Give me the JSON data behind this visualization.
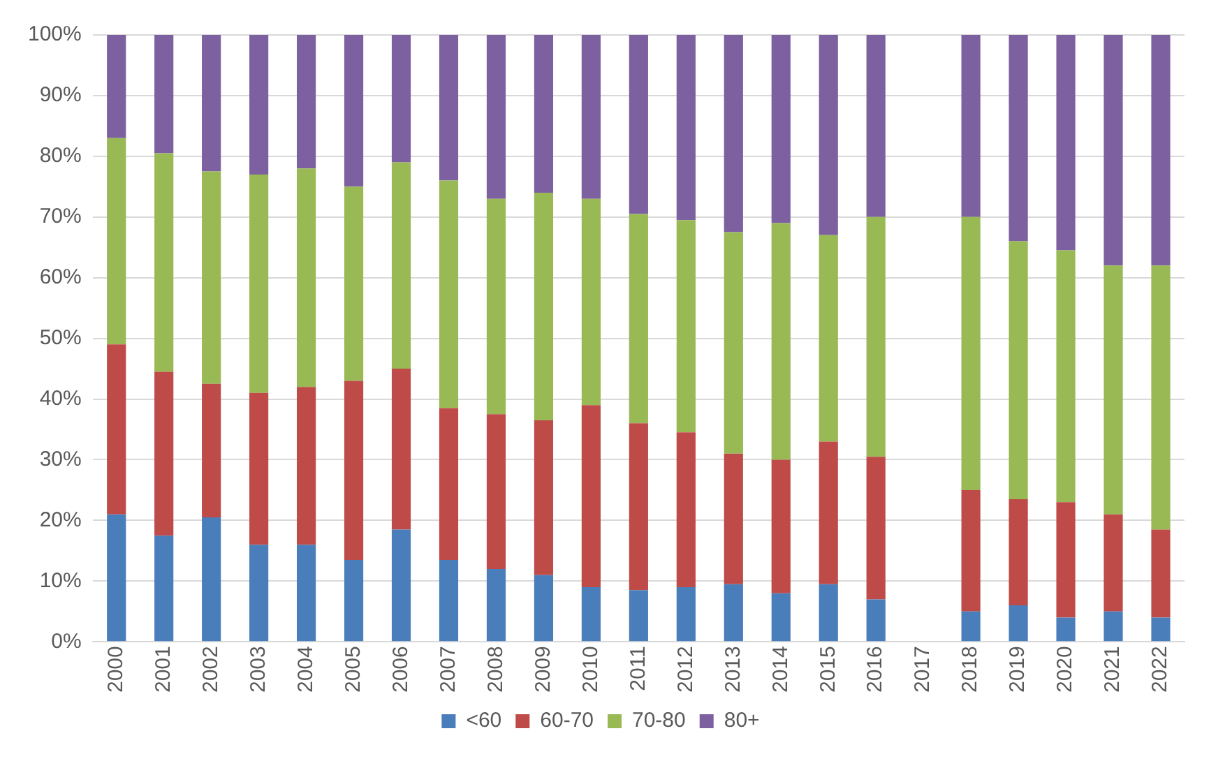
{
  "chart_data": {
    "type": "bar",
    "stacked": true,
    "categories": [
      "2000",
      "2001",
      "2002",
      "2003",
      "2004",
      "2005",
      "2006",
      "2007",
      "2008",
      "2009",
      "2010",
      "2011",
      "2012",
      "2013",
      "2014",
      "2015",
      "2016",
      "2017",
      "2018",
      "2019",
      "2020",
      "2021",
      "2022"
    ],
    "series": [
      {
        "name": "<60",
        "color": "#4a7ebb",
        "values": [
          21,
          17.5,
          20.5,
          16,
          16,
          13.5,
          18.5,
          13.5,
          12,
          11,
          9,
          8.5,
          9,
          9.5,
          8,
          9.5,
          7,
          null,
          5,
          6,
          4,
          5,
          4
        ]
      },
      {
        "name": "60-70",
        "color": "#be4b48",
        "values": [
          28,
          27,
          22,
          25,
          26,
          29.5,
          26.5,
          25,
          25.5,
          25.5,
          30,
          27.5,
          25.5,
          21.5,
          22,
          23.5,
          23.5,
          null,
          20,
          17.5,
          19,
          16,
          14.5
        ]
      },
      {
        "name": "70-80",
        "color": "#98b954",
        "values": [
          34,
          36,
          35,
          36,
          36,
          32,
          34,
          37.5,
          35.5,
          37.5,
          34,
          34.5,
          35,
          36.5,
          39,
          34,
          39.5,
          null,
          45,
          42.5,
          41.5,
          41,
          43.5
        ]
      },
      {
        "name": "80+",
        "color": "#7d60a0",
        "values": [
          17,
          19.5,
          22.5,
          23,
          22,
          25,
          21,
          24,
          27,
          26,
          27,
          29.5,
          30.5,
          32.5,
          31,
          33,
          30,
          null,
          30,
          34,
          35.5,
          38,
          38
        ]
      }
    ],
    "ylim": [
      0,
      100
    ],
    "yticks": [
      {
        "value": 0,
        "label": "0%"
      },
      {
        "value": 10,
        "label": "10%"
      },
      {
        "value": 20,
        "label": "20%"
      },
      {
        "value": 30,
        "label": "30%"
      },
      {
        "value": 40,
        "label": "40%"
      },
      {
        "value": 50,
        "label": "50%"
      },
      {
        "value": 60,
        "label": "60%"
      },
      {
        "value": 70,
        "label": "70%"
      },
      {
        "value": 80,
        "label": "80%"
      },
      {
        "value": 90,
        "label": "90%"
      },
      {
        "value": 100,
        "label": "100%"
      }
    ],
    "grid": "y",
    "legend": "bottom"
  }
}
